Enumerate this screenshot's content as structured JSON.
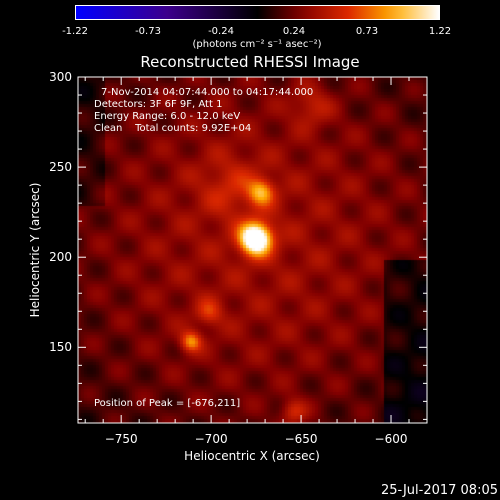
{
  "colorbar": {
    "ticks": [
      "-1.22",
      "-0.73",
      "-0.24",
      "0.24",
      "0.73",
      "1.22"
    ],
    "unit": "(photons cm⁻² s⁻¹ asec⁻²)"
  },
  "chart_data": {
    "type": "heatmap",
    "title": "Reconstructed RHESSI Image",
    "xlabel": "Heliocentric X (arcsec)",
    "ylabel": "Heliocentric Y (arcsec)",
    "xlim": [
      -774,
      -580
    ],
    "ylim": [
      108,
      300
    ],
    "xticks": [
      -750,
      -700,
      -650,
      -600
    ],
    "yticks": [
      150,
      200,
      250,
      300
    ],
    "xtick_labels": [
      "−750",
      "−700",
      "−650",
      "−600"
    ],
    "ytick_labels": [
      "150",
      "200",
      "250",
      "300"
    ],
    "colorscale": "hot",
    "zlim": [
      -1.22,
      1.22
    ],
    "peak": {
      "x": -676,
      "y": 211
    },
    "annotations": [
      "7-Nov-2014 04:07:44.000 to 04:17:44.000",
      "Detectors: 3F 6F 9F, Att 1",
      "Energy Range: 6.0 - 12.0 keV",
      "Clean    Total counts: 9.92E+04"
    ],
    "peak_label": "Position of Peak = [-676,211]"
  },
  "footer": "25-Jul-2017 08:05"
}
